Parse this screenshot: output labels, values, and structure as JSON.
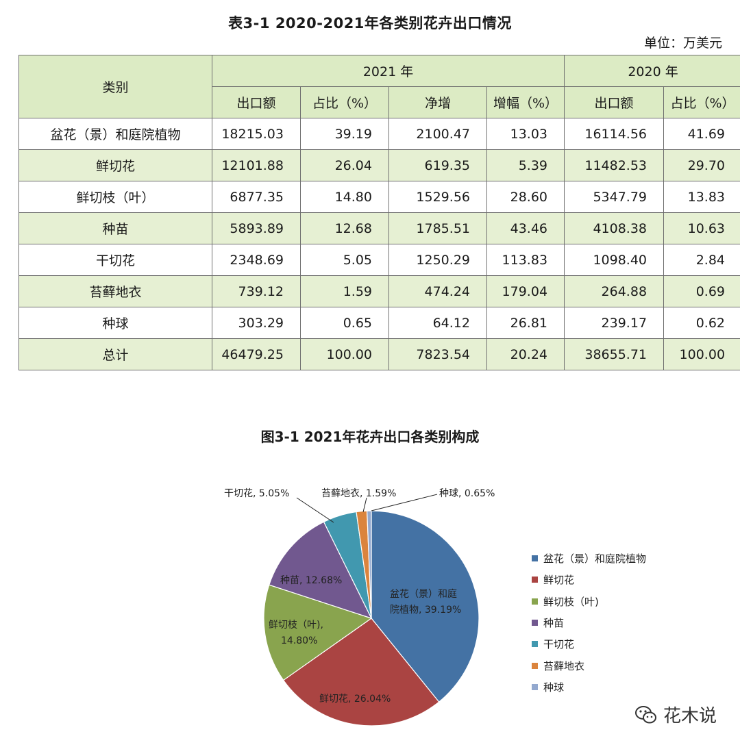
{
  "table": {
    "title": "表3-1  2020-2021年各类别花卉出口情况",
    "unit": "单位：万美元",
    "category_header": "类别",
    "year_2021": "2021 年",
    "year_2020": "2020 年",
    "columns_2021": [
      "出口额",
      "占比（%）",
      "净增",
      "增幅（%）"
    ],
    "columns_2020": [
      "出口额",
      "占比（%）"
    ],
    "rows": [
      {
        "category": "盆花（景）和庭院植物",
        "values": [
          "18215.03",
          "39.19",
          "2100.47",
          "13.03",
          "16114.56",
          "41.69"
        ]
      },
      {
        "category": "鲜切花",
        "values": [
          "12101.88",
          "26.04",
          "619.35",
          "5.39",
          "11482.53",
          "29.70"
        ]
      },
      {
        "category": "鲜切枝（叶）",
        "values": [
          "6877.35",
          "14.80",
          "1529.56",
          "28.60",
          "5347.79",
          "13.83"
        ]
      },
      {
        "category": "种苗",
        "values": [
          "5893.89",
          "12.68",
          "1785.51",
          "43.46",
          "4108.38",
          "10.63"
        ]
      },
      {
        "category": "干切花",
        "values": [
          "2348.69",
          "5.05",
          "1250.29",
          "113.83",
          "1098.40",
          "2.84"
        ]
      },
      {
        "category": "苔藓地衣",
        "values": [
          "739.12",
          "1.59",
          "474.24",
          "179.04",
          "264.88",
          "0.69"
        ]
      },
      {
        "category": "种球",
        "values": [
          "303.29",
          "0.65",
          "64.12",
          "26.81",
          "239.17",
          "0.62"
        ]
      },
      {
        "category": "总计",
        "values": [
          "46479.25",
          "100.00",
          "7823.54",
          "20.24",
          "38655.71",
          "100.00"
        ]
      }
    ]
  },
  "chart_data": {
    "type": "pie",
    "title": "图3-1 2021年花卉出口各类别构成",
    "slices": [
      {
        "name": "盆花（景）和庭院植物",
        "value": 39.19,
        "label": "盆花（景）和庭院植物, 39.19%",
        "color": "#4472a4"
      },
      {
        "name": "鲜切花",
        "value": 26.04,
        "label": "鲜切花, 26.04%",
        "color": "#aa4442"
      },
      {
        "name": "鲜切枝（叶）",
        "value": 14.8,
        "label": "鲜切枝（叶）, 14.80%",
        "color": "#89a44e"
      },
      {
        "name": "种苗",
        "value": 12.68,
        "label": "种苗, 12.68%",
        "color": "#71588f"
      },
      {
        "name": "干切花",
        "value": 5.05,
        "label": "干切花, 5.05%",
        "color": "#4198af"
      },
      {
        "name": "苔藓地衣",
        "value": 1.59,
        "label": "苔藓地衣, 1.59%",
        "color": "#db843d"
      },
      {
        "name": "种球",
        "value": 0.65,
        "label": "种球, 0.65%",
        "color": "#93a9cf"
      }
    ],
    "legend_entries": [
      "盆花（景）和庭院植物",
      "鲜切花",
      "鲜切枝（叶)",
      "种苗",
      "干切花",
      "苔藓地衣",
      "种球"
    ],
    "legend_position": "right",
    "slice_labels": {
      "s0_line1": "盆花（景）和庭",
      "s0_line2": "院植物, 39.19%",
      "s1": "鲜切花, 26.04%",
      "s2_line1": "鲜切枝（叶),",
      "s2_line2": "14.80%",
      "s3": "种苗, 12.68%",
      "s4": "干切花, 5.05%",
      "s5": "苔藓地衣, 1.59%",
      "s6": "种球, 0.65%"
    }
  },
  "watermark": {
    "text": "花木说",
    "icon": "wechat-icon"
  }
}
